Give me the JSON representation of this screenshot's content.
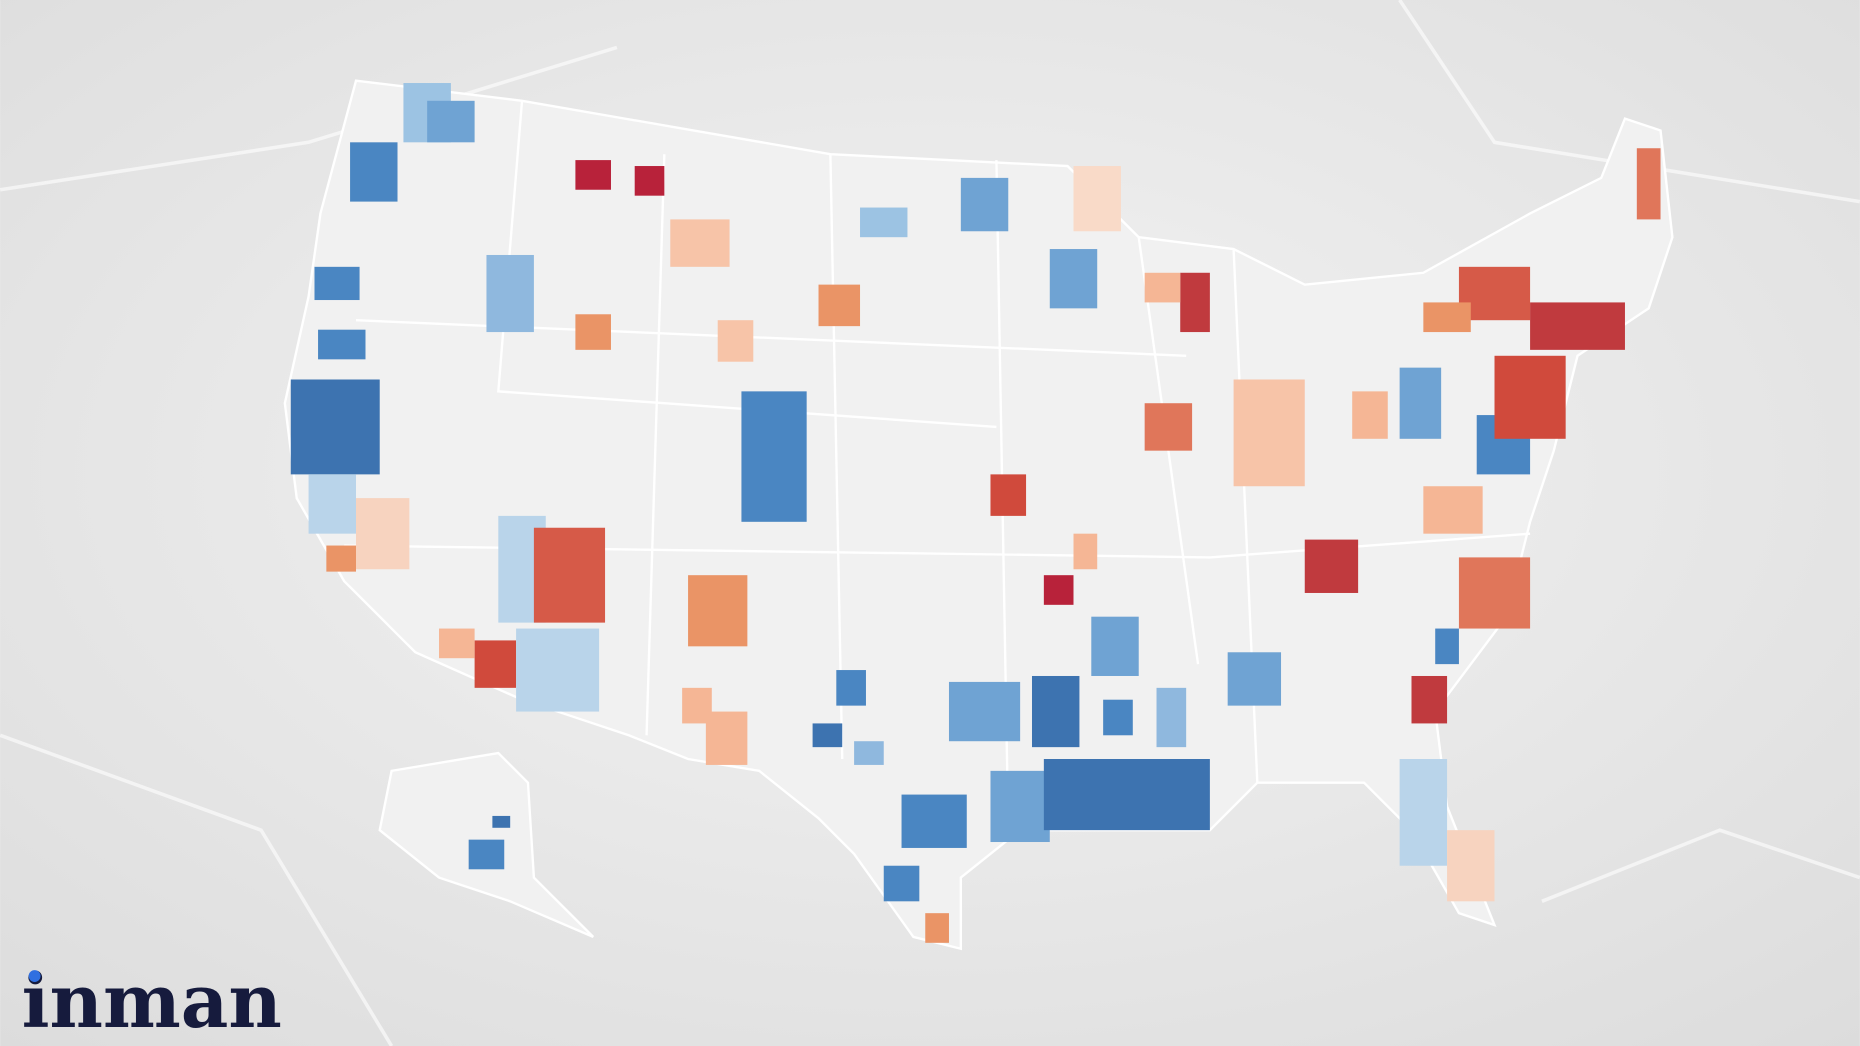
{
  "logo": {
    "text": "inman"
  }
}
